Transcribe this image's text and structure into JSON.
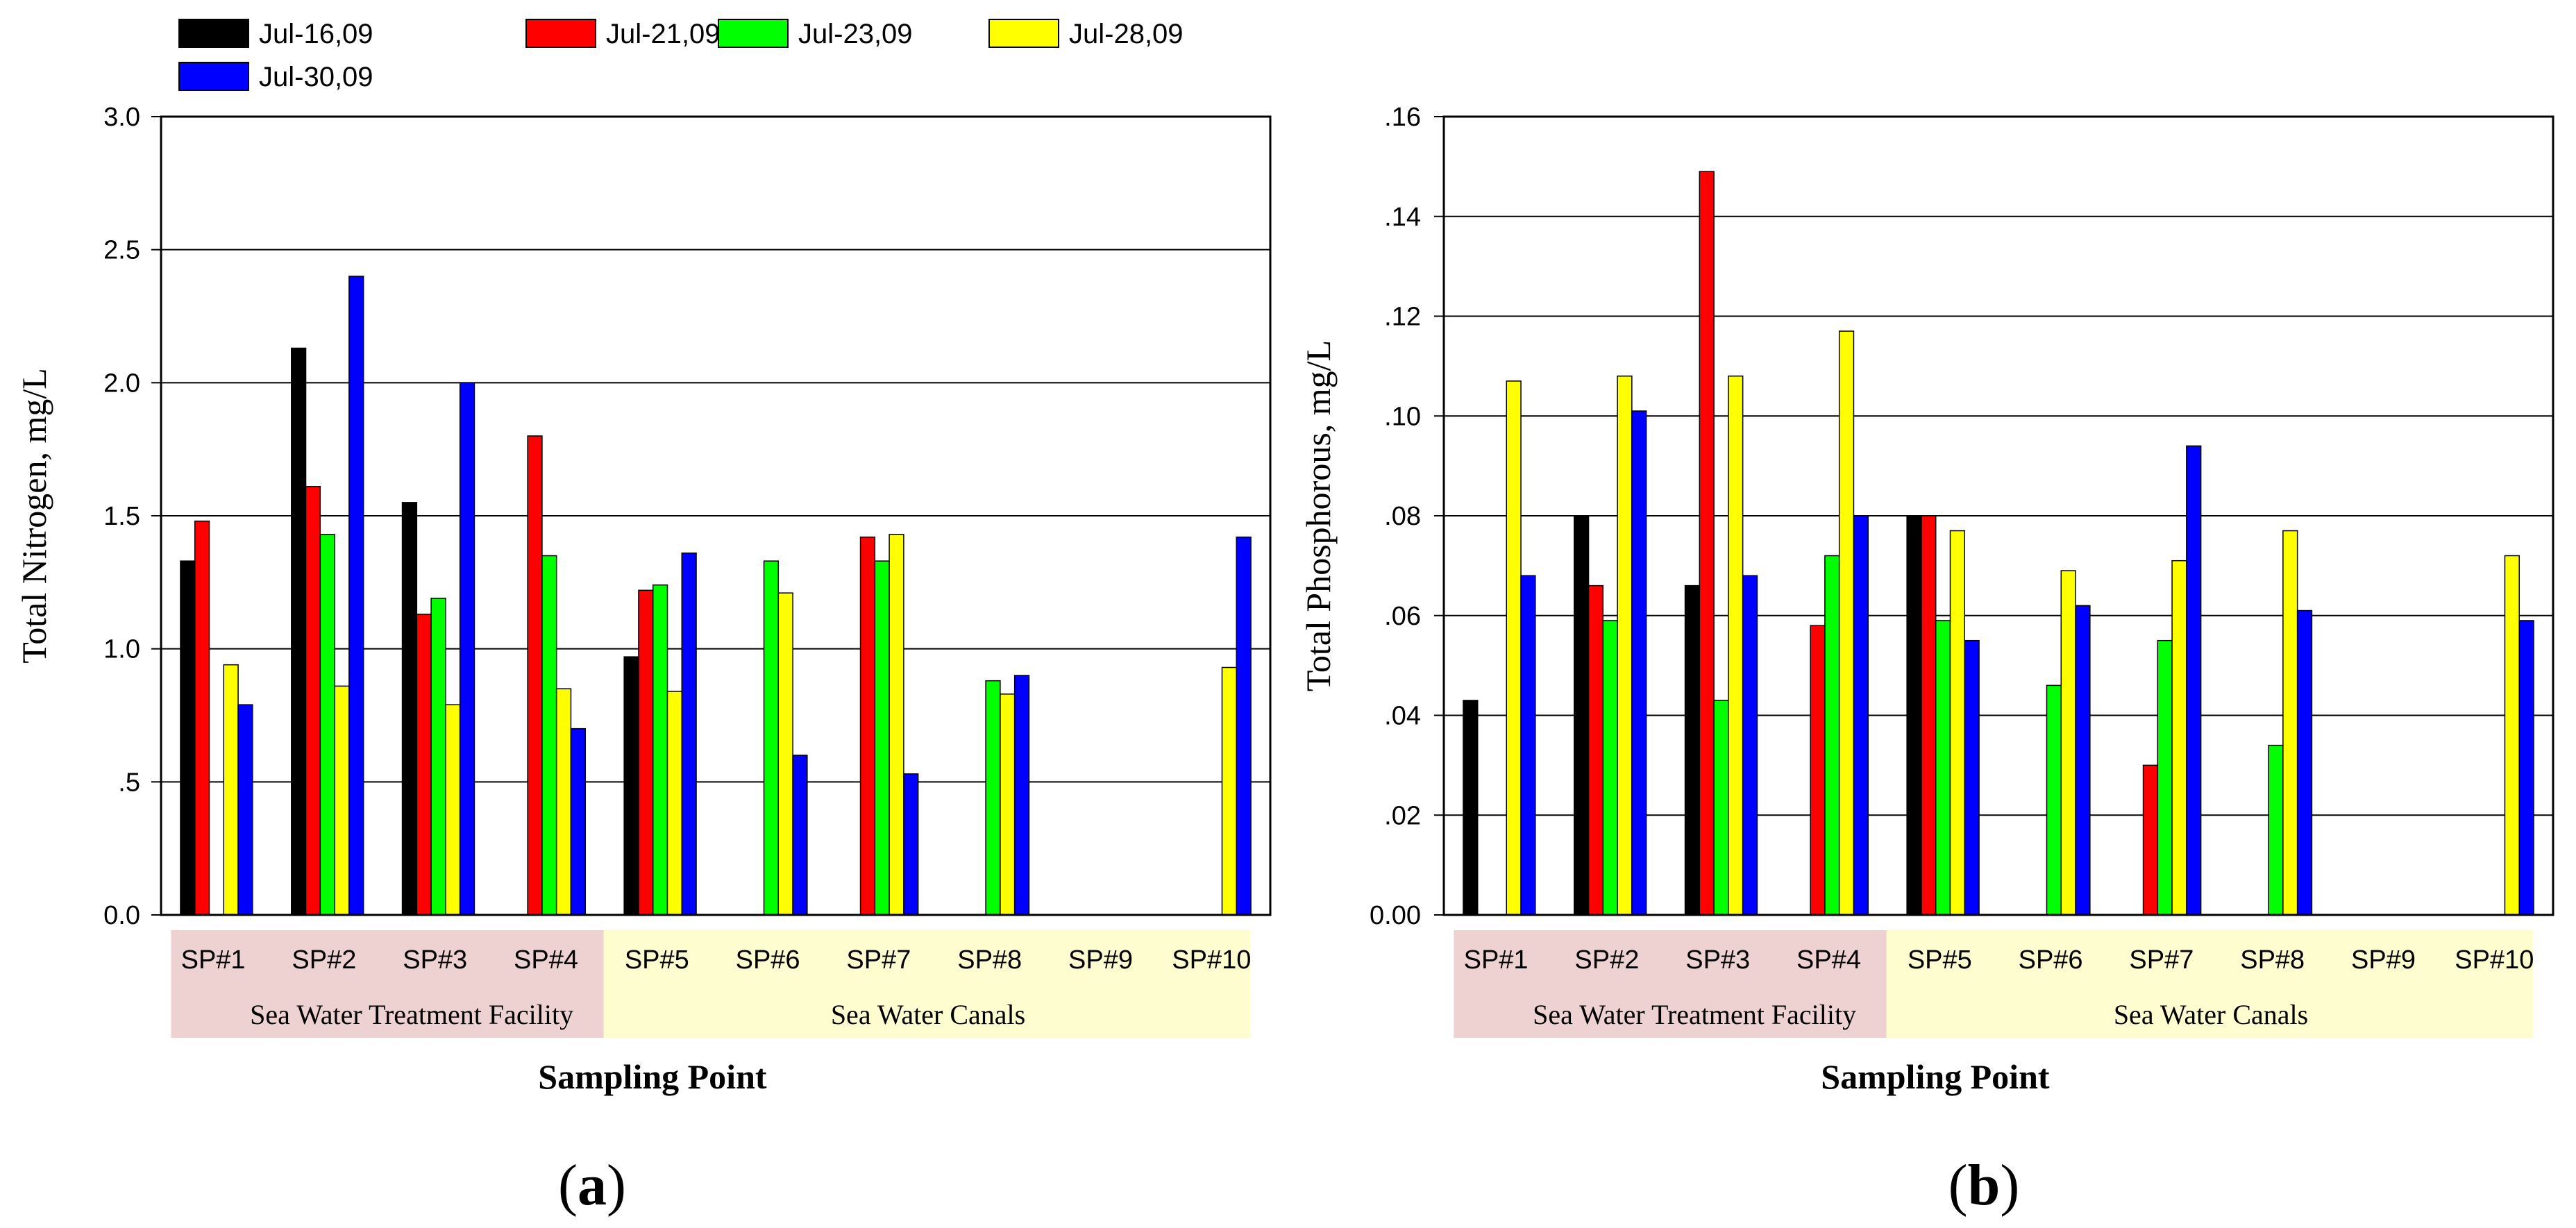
{
  "legend": [
    {
      "name": "Jul-16,09",
      "color": "#000000"
    },
    {
      "name": "Jul-21,09",
      "color": "#ff0000"
    },
    {
      "name": "Jul-23,09",
      "color": "#00ff00"
    },
    {
      "name": "Jul-28,09",
      "color": "#ffff00"
    },
    {
      "name": "Jul-30,09",
      "color": "#0000ff"
    }
  ],
  "chart_data": [
    {
      "type": "bar",
      "panel_label": "a",
      "ylabel": "Total Nitrogen, mg/L",
      "xlabel": "Sampling Point",
      "ylim": [
        0,
        3.0
      ],
      "yticks": [
        "0.0",
        ".5",
        "1.0",
        "1.5",
        "2.0",
        "2.5",
        "3.0"
      ],
      "ytick_values": [
        0,
        0.5,
        1.0,
        1.5,
        2.0,
        2.5,
        3.0
      ],
      "grid": true,
      "legend_position": "top",
      "categories": [
        "SP#1",
        "SP#2",
        "SP#3",
        "SP#4",
        "SP#5",
        "SP#6",
        "SP#7",
        "SP#8",
        "SP#9",
        "SP#10"
      ],
      "groups": [
        {
          "label": "Sea Water Treatment Facility",
          "from": 0,
          "to": 3,
          "color": "#eed2d2"
        },
        {
          "label": "Sea Water Canals",
          "from": 4,
          "to": 9,
          "color": "#fdfdcf"
        }
      ],
      "series": [
        {
          "name": "Jul-16,09",
          "color": "#000000",
          "values": [
            1.33,
            2.13,
            1.55,
            null,
            0.97,
            null,
            null,
            null,
            null,
            null
          ]
        },
        {
          "name": "Jul-21,09",
          "color": "#ff0000",
          "values": [
            1.48,
            1.61,
            1.13,
            1.8,
            1.22,
            null,
            1.42,
            null,
            null,
            null
          ]
        },
        {
          "name": "Jul-23,09",
          "color": "#00ff00",
          "values": [
            null,
            1.43,
            1.19,
            1.35,
            1.24,
            1.33,
            1.33,
            0.88,
            null,
            null
          ]
        },
        {
          "name": "Jul-28,09",
          "color": "#ffff00",
          "values": [
            0.94,
            0.86,
            0.79,
            0.85,
            0.84,
            1.21,
            1.43,
            0.83,
            null,
            0.93
          ]
        },
        {
          "name": "Jul-30,09",
          "color": "#0000ff",
          "values": [
            0.79,
            2.4,
            2.0,
            0.7,
            1.36,
            0.6,
            0.53,
            0.9,
            null,
            1.42
          ]
        }
      ]
    },
    {
      "type": "bar",
      "panel_label": "b",
      "ylabel": "Total Phosphorous, mg/L",
      "xlabel": "Sampling Point",
      "ylim": [
        0,
        0.16
      ],
      "yticks": [
        "0.00",
        ".02",
        ".04",
        ".06",
        ".08",
        ".10",
        ".12",
        ".14",
        ".16"
      ],
      "ytick_values": [
        0,
        0.02,
        0.04,
        0.06,
        0.08,
        0.1,
        0.12,
        0.14,
        0.16
      ],
      "grid": true,
      "categories": [
        "SP#1",
        "SP#2",
        "SP#3",
        "SP#4",
        "SP#5",
        "SP#6",
        "SP#7",
        "SP#8",
        "SP#9",
        "SP#10"
      ],
      "groups": [
        {
          "label": "Sea Water Treatment Facility",
          "from": 0,
          "to": 3,
          "color": "#eed2d2"
        },
        {
          "label": "Sea Water Canals",
          "from": 4,
          "to": 9,
          "color": "#fdfdcf"
        }
      ],
      "series": [
        {
          "name": "Jul-16,09",
          "color": "#000000",
          "values": [
            0.043,
            0.08,
            0.066,
            null,
            0.08,
            null,
            null,
            null,
            null,
            null
          ]
        },
        {
          "name": "Jul-21,09",
          "color": "#ff0000",
          "values": [
            null,
            0.066,
            0.149,
            0.058,
            0.08,
            null,
            0.03,
            null,
            null,
            null
          ]
        },
        {
          "name": "Jul-23,09",
          "color": "#00ff00",
          "values": [
            null,
            0.059,
            0.043,
            0.072,
            0.059,
            0.046,
            0.055,
            0.034,
            null,
            null
          ]
        },
        {
          "name": "Jul-28,09",
          "color": "#ffff00",
          "values": [
            0.107,
            0.108,
            0.108,
            0.117,
            0.077,
            0.069,
            0.071,
            0.077,
            null,
            0.072
          ]
        },
        {
          "name": "Jul-30,09",
          "color": "#0000ff",
          "values": [
            0.068,
            0.101,
            0.068,
            0.08,
            0.055,
            0.062,
            0.094,
            0.061,
            null,
            0.059
          ]
        }
      ]
    }
  ]
}
